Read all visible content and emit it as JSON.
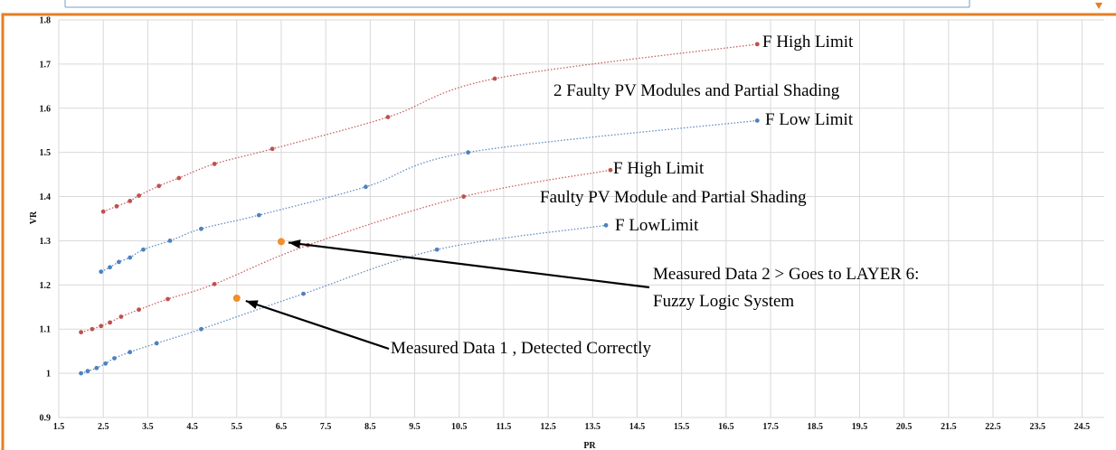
{
  "colors": {
    "frame": "#e67e22",
    "top_strip": "#7a9cc6",
    "red_series": "#c0504d",
    "blue_series": "#4f81bd",
    "measured_point": "#f28e2b",
    "arrow": "#000000",
    "grid": "#d9d9d9"
  },
  "chart_data": {
    "type": "scatter",
    "xlabel": "PR",
    "ylabel": "VR",
    "xlim": [
      1.5,
      25.0
    ],
    "ylim": [
      0.9,
      1.8
    ],
    "x_ticks": [
      "1.5",
      "2.5",
      "3.5",
      "4.5",
      "5.5",
      "6.5",
      "7.5",
      "8.5",
      "9.5",
      "10.5",
      "11.5",
      "12.5",
      "13.5",
      "14.5",
      "15.5",
      "16.5",
      "17.5",
      "18.5",
      "19.5",
      "20.5",
      "21.5",
      "22.5",
      "23.5",
      "24.5"
    ],
    "y_ticks": [
      "0.9",
      "1",
      "1.1",
      "1.2",
      "1.3",
      "1.4",
      "1.5",
      "1.6",
      "1.7",
      "1.8"
    ],
    "grid": true,
    "trendlines": "dotted",
    "series": [
      {
        "group": "2 Faulty PV Modules and Partial Shading",
        "label": "F High Limit",
        "color": "red",
        "points": [
          [
            2.5,
            1.366
          ],
          [
            2.8,
            1.378
          ],
          [
            3.1,
            1.39
          ],
          [
            3.3,
            1.402
          ],
          [
            3.75,
            1.424
          ],
          [
            4.2,
            1.442
          ],
          [
            5.0,
            1.474
          ],
          [
            6.3,
            1.508
          ],
          [
            8.9,
            1.58
          ],
          [
            11.3,
            1.667
          ],
          [
            17.2,
            1.745
          ]
        ]
      },
      {
        "group": "2 Faulty PV Modules and Partial Shading",
        "label": "F Low Limit",
        "color": "blue",
        "points": [
          [
            2.45,
            1.23
          ],
          [
            2.65,
            1.24
          ],
          [
            2.85,
            1.252
          ],
          [
            3.1,
            1.262
          ],
          [
            3.4,
            1.28
          ],
          [
            4.0,
            1.3
          ],
          [
            4.7,
            1.327
          ],
          [
            6.0,
            1.358
          ],
          [
            8.4,
            1.422
          ],
          [
            10.7,
            1.5
          ],
          [
            17.2,
            1.572
          ]
        ]
      },
      {
        "group": "Faulty PV Module and Partial Shading",
        "label": "F High Limit",
        "color": "red",
        "points": [
          [
            2.0,
            1.093
          ],
          [
            2.25,
            1.1
          ],
          [
            2.45,
            1.107
          ],
          [
            2.65,
            1.115
          ],
          [
            2.9,
            1.128
          ],
          [
            3.3,
            1.144
          ],
          [
            3.95,
            1.168
          ],
          [
            5.0,
            1.202
          ],
          [
            7.1,
            1.29
          ],
          [
            10.6,
            1.4
          ],
          [
            13.9,
            1.46
          ]
        ]
      },
      {
        "group": "Faulty PV Module and Partial Shading",
        "label": "F LowLimit",
        "color": "blue",
        "points": [
          [
            2.0,
            1.0
          ],
          [
            2.15,
            1.005
          ],
          [
            2.35,
            1.012
          ],
          [
            2.55,
            1.022
          ],
          [
            2.75,
            1.034
          ],
          [
            3.1,
            1.048
          ],
          [
            3.7,
            1.068
          ],
          [
            4.7,
            1.1
          ],
          [
            7.0,
            1.18
          ],
          [
            10.0,
            1.28
          ],
          [
            13.8,
            1.335
          ]
        ]
      }
    ],
    "measured_points": [
      {
        "label": "Measured Data 1 , Detected Correctly",
        "x": 5.5,
        "y": 1.17
      },
      {
        "label_lines": [
          "Measured Data 2 > Goes to LAYER 6:",
          "Fuzzy Logic System"
        ],
        "x": 6.5,
        "y": 1.298
      }
    ],
    "annotations": [
      "F High Limit",
      "2 Faulty PV Modules and Partial Shading",
      "F Low Limit",
      "F High Limit",
      "Faulty PV Module and Partial Shading",
      "F LowLimit"
    ]
  }
}
